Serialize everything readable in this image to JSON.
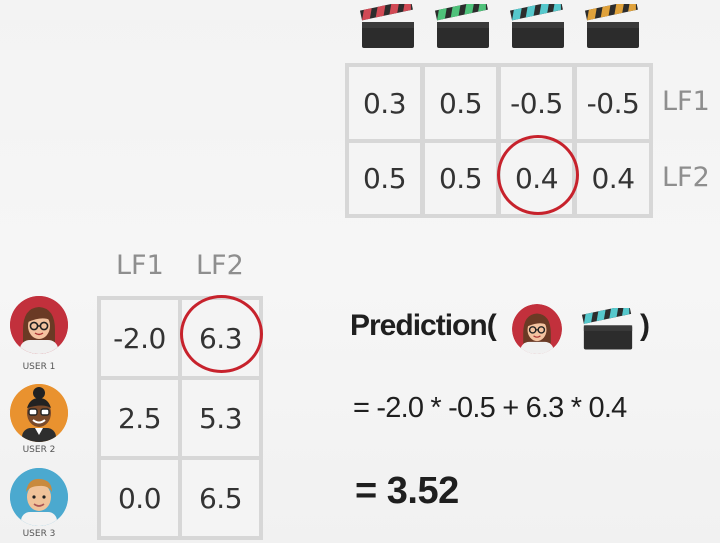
{
  "items": [
    {
      "icon": "clapperboard-red-icon",
      "stripe": "#d14a55"
    },
    {
      "icon": "clapperboard-green-icon",
      "stripe": "#4fc27a"
    },
    {
      "icon": "clapperboard-teal-icon",
      "stripe": "#56c8cc"
    },
    {
      "icon": "clapperboard-orange-icon",
      "stripe": "#e0a23b"
    }
  ],
  "item_factors": {
    "rows": [
      {
        "label": "LF1",
        "values": [
          "0.3",
          "0.5",
          "-0.5",
          "-0.5"
        ]
      },
      {
        "label": "LF2",
        "values": [
          "0.5",
          "0.5",
          "0.4",
          "0.4"
        ]
      }
    ]
  },
  "user_factors": {
    "col_labels": [
      "LF1",
      "LF2"
    ],
    "rows": [
      {
        "user": "USER 1",
        "values": [
          "-2.0",
          "6.3"
        ]
      },
      {
        "user": "USER 2",
        "values": [
          "2.5",
          "5.3"
        ]
      },
      {
        "user": "USER 3",
        "values": [
          "0.0",
          "6.5"
        ]
      }
    ]
  },
  "formula": {
    "prediction_label": "Prediction(",
    "close_paren": ")",
    "expression": "= -2.0 * -0.5 + 6.3 * 0.4",
    "result": "= 3.52"
  },
  "colors": {
    "highlight": "#c7222c"
  }
}
